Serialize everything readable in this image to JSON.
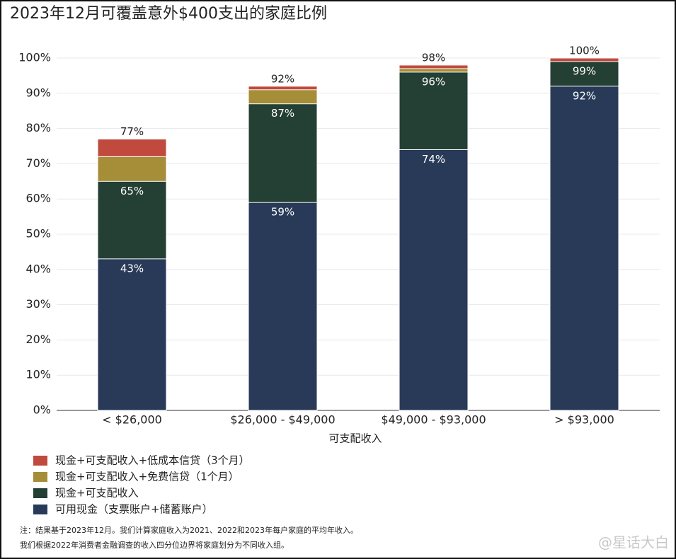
{
  "chart_data": {
    "type": "bar",
    "title": "2023年12月可覆盖意外$400支出的家庭比例",
    "xlabel": "可支配收入",
    "categories": [
      "< $26,000",
      "$26,000 - $49,000",
      "$49,000 - $93,000",
      "> $93,000"
    ],
    "series": [
      {
        "name": "现金+可支配收入+低成本信贷（3个月）",
        "color": "#c04a3e",
        "values": [
          77,
          92,
          98,
          100
        ],
        "value_labels": [
          "77%",
          "92%",
          "98%",
          "100%"
        ]
      },
      {
        "name": "现金+可支配收入+免费信贷（1个月）",
        "color": "#a68d38",
        "values": [
          72,
          91,
          97,
          99
        ],
        "value_labels": [
          null,
          null,
          null,
          null
        ]
      },
      {
        "name": "现金+可支配收入",
        "color": "#243f34",
        "values": [
          65,
          87,
          96,
          99
        ],
        "value_labels": [
          "65%",
          "87%",
          "96%",
          "99%"
        ]
      },
      {
        "name": "可用现金（支票账户+储蓄账户）",
        "color": "#283a58",
        "values": [
          43,
          59,
          74,
          92
        ],
        "value_labels": [
          "43%",
          "59%",
          "74%",
          "92%"
        ]
      }
    ],
    "ylim": [
      0,
      100
    ],
    "yticks": [
      {
        "value": 0,
        "label": "0%"
      },
      {
        "value": 10,
        "label": "10%"
      },
      {
        "value": 20,
        "label": "20%"
      },
      {
        "value": 30,
        "label": "30%"
      },
      {
        "value": 40,
        "label": "40%"
      },
      {
        "value": 50,
        "label": "50%"
      },
      {
        "value": 60,
        "label": "60%"
      },
      {
        "value": 70,
        "label": "70%"
      },
      {
        "value": 80,
        "label": "80%"
      },
      {
        "value": 90,
        "label": "90%"
      },
      {
        "value": 100,
        "label": "100%"
      }
    ],
    "grid": true,
    "notes": [
      "注：结果基于2023年12月。我们计算家庭收入为2021、2022和2023年每户家庭的平均年收入。",
      "我们根据2022年消费者金融调查的收入四分位边界将家庭划分为不同收入组。"
    ],
    "watermark": "@星话大白"
  }
}
